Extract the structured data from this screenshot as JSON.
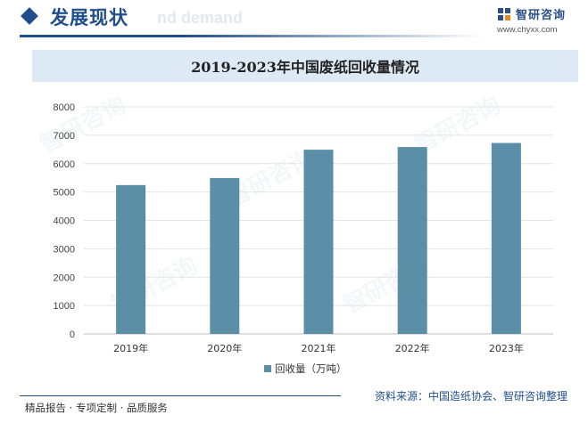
{
  "header": {
    "section_title": "发展现状",
    "ghost_text": "nd demand",
    "logo_name": "智研咨询",
    "logo_url": "www.chyxx.com"
  },
  "chart_data": {
    "type": "bar",
    "title": "2019-2023年中国废纸回收量情况",
    "categories": [
      "2019年",
      "2020年",
      "2021年",
      "2022年",
      "2023年"
    ],
    "series": [
      {
        "name": "回收量（万吨）",
        "values": [
          5244,
          5493,
          6491,
          6585,
          6728
        ]
      }
    ],
    "ylim": [
      0,
      8000
    ],
    "yticks": [
      "0",
      "1000",
      "2000",
      "3000",
      "4000",
      "5000",
      "6000",
      "7000",
      "8000"
    ],
    "grid": true,
    "legend_position": "bottom",
    "bar_color": "#5b8fa8"
  },
  "watermark": {
    "brand": "智研咨询"
  },
  "footer": {
    "left_text": "精品报告 · 专项定制 · 品质服务",
    "source_text": "资料来源：中国造纸协会、智研咨询整理"
  }
}
